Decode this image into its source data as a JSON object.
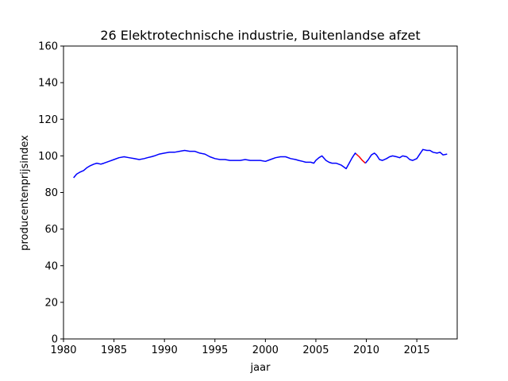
{
  "chart_data": {
    "type": "line",
    "title": "26 Elektrotechnische industrie, Buitenlandse afzet",
    "xlabel": "jaar",
    "ylabel": "producentenprijsindex",
    "xlim": [
      1980,
      2019
    ],
    "ylim": [
      0,
      160
    ],
    "xticks": [
      1980,
      1985,
      1990,
      1995,
      2000,
      2005,
      2010,
      2015
    ],
    "yticks": [
      0,
      20,
      40,
      60,
      80,
      100,
      120,
      140,
      160
    ],
    "grid": false,
    "legend": "none",
    "series": [
      {
        "color": "#0000ff",
        "x": [
          1981.0,
          1981.3,
          1981.6,
          1982.0,
          1982.3,
          1982.6,
          1983.0,
          1983.3,
          1983.7,
          1984.0,
          1984.5,
          1985.0,
          1985.5,
          1986.0,
          1986.5,
          1987.0,
          1987.5,
          1988.0,
          1988.3,
          1988.7,
          1989.0,
          1989.5,
          1990.0,
          1990.5,
          1991.0,
          1991.5,
          1992.0,
          1992.5,
          1993.0,
          1993.5,
          1994.0,
          1994.5,
          1995.0,
          1995.5,
          1996.0,
          1996.5,
          1997.0,
          1997.5,
          1998.0,
          1998.5,
          1999.0,
          1999.5,
          2000.0,
          2000.5,
          2001.0,
          2001.5,
          2002.0,
          2002.5,
          2003.0,
          2003.3,
          2003.7,
          2004.0,
          2004.5,
          2004.8,
          2005.0,
          2005.3,
          2005.6,
          2006.0,
          2006.3,
          2006.6,
          2007.0,
          2007.5,
          2008.0,
          2008.3,
          2008.6,
          2008.9,
          2009.0
        ],
        "y": [
          88,
          90,
          91,
          92,
          93.5,
          94.5,
          95.5,
          96,
          95.5,
          96,
          97,
          98,
          99,
          99.5,
          99,
          98.5,
          98,
          98.5,
          99,
          99.5,
          100,
          101,
          101.5,
          102,
          102,
          102.5,
          103,
          102.5,
          102.5,
          101.5,
          101,
          99.5,
          98.5,
          98,
          98,
          97.5,
          97.5,
          97.5,
          98,
          97.5,
          97.5,
          97.5,
          97,
          98,
          99,
          99.5,
          99.5,
          98.5,
          98,
          97.5,
          97,
          96.5,
          96.5,
          96,
          97.5,
          99,
          100,
          97.5,
          96.5,
          96,
          96,
          95,
          93,
          96,
          99,
          101.5,
          101
        ]
      },
      {
        "color": "#ff0000",
        "x": [
          2009.0,
          2009.3,
          2009.6,
          2009.9
        ],
        "y": [
          101,
          99.5,
          97.5,
          96
        ]
      },
      {
        "color": "#0000ff",
        "x": [
          2009.9,
          2010.2,
          2010.5,
          2010.8,
          2011.0,
          2011.3,
          2011.6,
          2012.0,
          2012.3,
          2012.6,
          2013.0,
          2013.3,
          2013.6,
          2014.0,
          2014.3,
          2014.6,
          2015.0,
          2015.3,
          2015.6,
          2016.0,
          2016.3,
          2016.6,
          2017.0,
          2017.3,
          2017.6,
          2018.0
        ],
        "y": [
          96,
          98,
          100.5,
          101.5,
          100.5,
          98,
          97.5,
          98.5,
          99.5,
          100,
          99.5,
          99,
          100,
          99.5,
          98,
          97.5,
          98.5,
          101,
          103.5,
          103,
          103,
          102,
          101.5,
          102,
          100.5,
          101
        ]
      }
    ]
  }
}
